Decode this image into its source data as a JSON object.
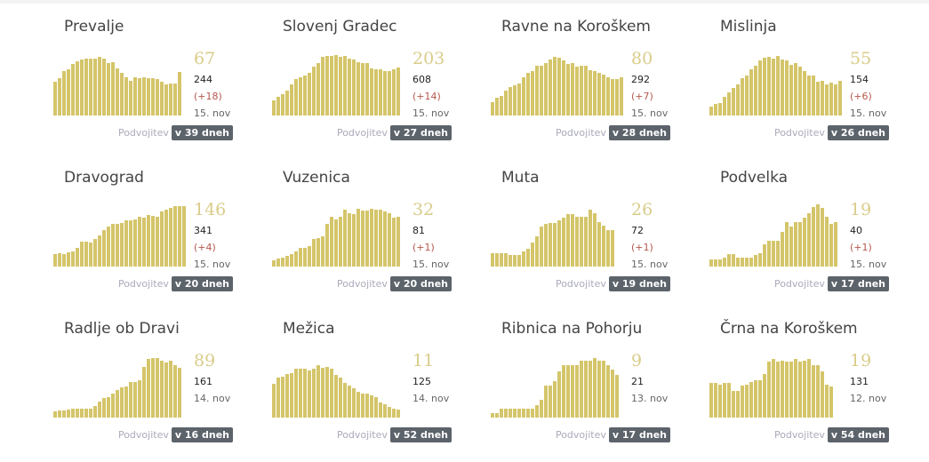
{
  "colors": {
    "bar": "#d4c56a",
    "badge": "#5c636b",
    "increase": "#b5584c"
  },
  "doubling_label": "Podvojitev",
  "cards": [
    {
      "name": "Prevalje",
      "active": "67",
      "total": "244",
      "delta": "(+18)",
      "date": "15. nov",
      "doubling": "v 39 dneh",
      "bars": [
        54,
        60,
        72,
        75,
        83,
        87,
        90,
        91,
        91,
        92,
        95,
        92,
        85,
        86,
        76,
        68,
        62,
        56,
        62,
        60,
        61,
        60,
        60,
        58,
        54,
        50,
        52,
        52,
        70
      ]
    },
    {
      "name": "Slovenj Gradec",
      "active": "203",
      "total": "608",
      "delta": "(+14)",
      "date": "15. nov",
      "doubling": "v 27 dneh",
      "bars": [
        24,
        30,
        34,
        40,
        50,
        58,
        62,
        64,
        68,
        78,
        85,
        94,
        96,
        96,
        97,
        95,
        96,
        92,
        90,
        86,
        84,
        84,
        76,
        74,
        74,
        72,
        71,
        74,
        77
      ]
    },
    {
      "name": "Ravne na Koroškem",
      "active": "80",
      "total": "292",
      "delta": "(+7)",
      "date": "15. nov",
      "doubling": "v 28 dneh",
      "bars": [
        22,
        28,
        31,
        40,
        46,
        49,
        51,
        61,
        68,
        72,
        80,
        80,
        84,
        90,
        95,
        93,
        88,
        83,
        84,
        78,
        80,
        80,
        73,
        71,
        68,
        66,
        62,
        58,
        58,
        62
      ]
    },
    {
      "name": "Mislinja",
      "active": "55",
      "total": "154",
      "delta": "(+6)",
      "date": "15. nov",
      "doubling": "v 26 dneh",
      "bars": [
        14,
        18,
        20,
        30,
        37,
        45,
        50,
        60,
        65,
        75,
        80,
        88,
        93,
        94,
        92,
        96,
        90,
        89,
        82,
        84,
        78,
        71,
        64,
        64,
        55,
        56,
        50,
        53,
        50,
        56
      ]
    },
    {
      "name": "Dravograd",
      "active": "146",
      "total": "341",
      "delta": "(+4)",
      "date": "15. nov",
      "doubling": "v 20 dneh",
      "bars": [
        20,
        22,
        20,
        23,
        25,
        30,
        40,
        40,
        38,
        45,
        50,
        58,
        65,
        68,
        69,
        70,
        74,
        74,
        76,
        80,
        78,
        83,
        82,
        80,
        88,
        92,
        94,
        97,
        97,
        97
      ]
    },
    {
      "name": "Vuzenica",
      "active": "32",
      "total": "81",
      "delta": "(+1)",
      "date": "15. nov",
      "doubling": "v 20 dneh",
      "bars": [
        10,
        13,
        14,
        17,
        20,
        24,
        30,
        30,
        33,
        45,
        46,
        48,
        68,
        80,
        76,
        80,
        92,
        86,
        85,
        93,
        90,
        90,
        93,
        92,
        92,
        88,
        86,
        78,
        80
      ]
    },
    {
      "name": "Muta",
      "active": "26",
      "total": "72",
      "delta": "(+1)",
      "date": "15. nov",
      "doubling": "v 19 dneh",
      "bars": [
        21,
        21,
        21,
        21,
        18,
        18,
        18,
        24,
        29,
        38,
        48,
        64,
        68,
        70,
        70,
        74,
        78,
        85,
        84,
        80,
        80,
        80,
        92,
        86,
        72,
        66,
        58,
        58
      ]
    },
    {
      "name": "Podvelka",
      "active": "19",
      "total": "40",
      "delta": "(+1)",
      "date": "15. nov",
      "doubling": "v 17 dneh",
      "bars": [
        12,
        12,
        12,
        15,
        20,
        20,
        15,
        15,
        15,
        15,
        18,
        22,
        36,
        41,
        41,
        41,
        56,
        72,
        64,
        72,
        72,
        78,
        86,
        96,
        100,
        94,
        80,
        68,
        72
      ]
    },
    {
      "name": "Radlje ob Dravi",
      "active": "89",
      "total": "161",
      "delta": "",
      "date": "14. nov",
      "doubling": "v 16 dneh",
      "bars": [
        10,
        11,
        12,
        13,
        15,
        15,
        15,
        15,
        15,
        18,
        26,
        31,
        33,
        38,
        44,
        48,
        50,
        57,
        57,
        60,
        82,
        95,
        96,
        96,
        92,
        88,
        92,
        85,
        80
      ]
    },
    {
      "name": "Mežica",
      "active": "11",
      "total": "125",
      "delta": "",
      "date": "14. nov",
      "doubling": "v 52 dneh",
      "bars": [
        55,
        64,
        66,
        70,
        72,
        78,
        78,
        78,
        76,
        78,
        84,
        80,
        82,
        78,
        69,
        64,
        56,
        51,
        47,
        42,
        39,
        38,
        36,
        33,
        24,
        21,
        17,
        15,
        13
      ]
    },
    {
      "name": "Ribnica na Pohorju",
      "active": "9",
      "total": "21",
      "delta": "",
      "date": "13. nov",
      "doubling": "v 17 dneh",
      "bars": [
        7,
        7,
        14,
        14,
        14,
        14,
        14,
        14,
        14,
        14,
        20,
        28,
        51,
        51,
        59,
        74,
        84,
        84,
        84,
        84,
        92,
        92,
        92,
        96,
        92,
        92,
        84,
        77,
        69
      ]
    },
    {
      "name": "Črna na Koroškem",
      "active": "19",
      "total": "131",
      "delta": "",
      "date": "12. nov",
      "doubling": "v 54 dneh",
      "bars": [
        56,
        56,
        53,
        56,
        56,
        43,
        43,
        52,
        53,
        57,
        60,
        60,
        70,
        90,
        94,
        90,
        92,
        90,
        90,
        94,
        90,
        91,
        94,
        84,
        84,
        74,
        53,
        50
      ]
    }
  ]
}
